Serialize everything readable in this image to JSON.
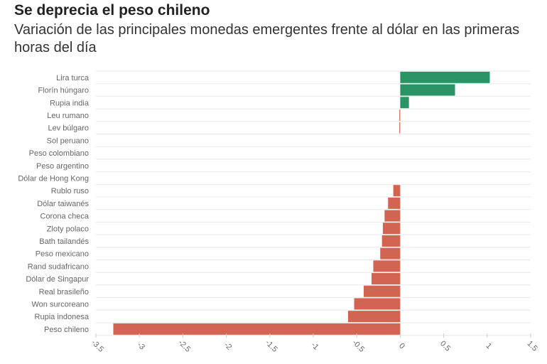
{
  "chart_data": {
    "type": "bar",
    "orientation": "horizontal",
    "title": "Se deprecia el peso chileno",
    "subtitle": "Variación de las principales monedas emergentes frente al dólar en las primeras horas del día",
    "categories": [
      "Lira turca",
      "Florín húngaro",
      "Rupia india",
      "Leu rumano",
      "Lev búlgaro",
      "Sol peruano",
      "Peso colombiano",
      "Peso argentino",
      "Dólar de Hong Kong",
      "Rublo ruso",
      "Dólar taiwanés",
      "Corona checa",
      "Zloty polaco",
      "Bath tailandés",
      "Peso mexicano",
      "Rand sudafricano",
      "Dólar de Singapur",
      "Real brasileño",
      "Won surcoreano",
      "Rupia indonesa",
      "Peso chileno"
    ],
    "values": [
      1.03,
      0.63,
      0.1,
      -0.01,
      -0.01,
      0,
      0,
      0,
      0,
      -0.08,
      -0.14,
      -0.18,
      -0.2,
      -0.21,
      -0.23,
      -0.31,
      -0.33,
      -0.42,
      -0.53,
      -0.6,
      -3.3
    ],
    "xlim": [
      -3.5,
      1.5
    ],
    "xticks": [
      -3.5,
      -3,
      -2.5,
      -2,
      -1.5,
      -1,
      -0.5,
      0,
      0.5,
      1,
      1.5
    ],
    "xtick_labels": [
      "-3.5",
      "-3",
      "-2.5",
      "-2",
      "-1.5",
      "-1",
      "-0.5",
      "0",
      "0.5",
      "1",
      "1.5"
    ],
    "xlabel": "",
    "ylabel": "",
    "grid": true,
    "colors": {
      "positive": "#2a9467",
      "negative": "#d46452",
      "grid": "#e8e8e8",
      "label": "#666666"
    }
  }
}
